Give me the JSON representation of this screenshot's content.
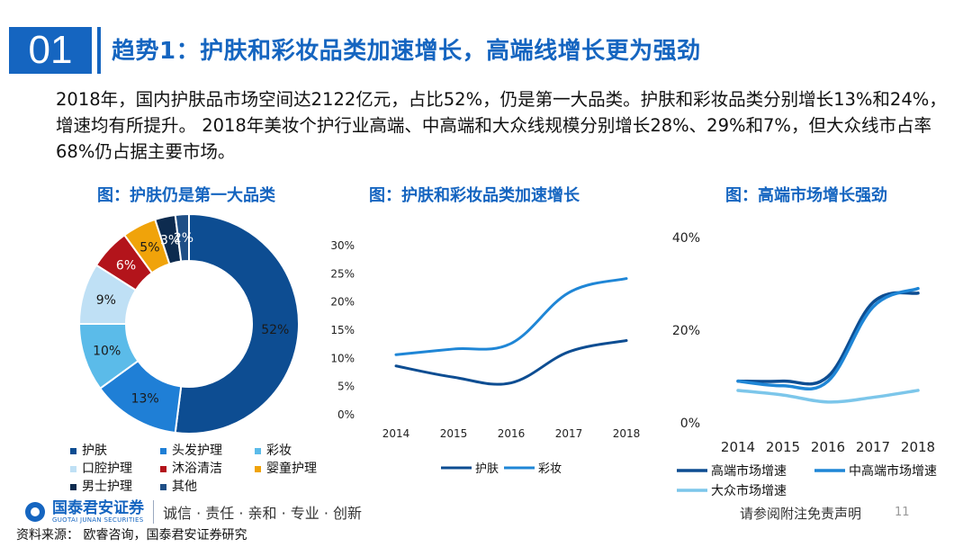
{
  "header": {
    "number": "01",
    "title": "趋势1：护肤和彩妆品类加速增长，高端线增长更为强劲"
  },
  "intro": "2018年，国内护肤品市场空间达2122亿元，占比52%，仍是第一大品类。护肤和彩妆品类分别增长13%和24%，增速均有所提升。 2018年美妆个护行业高端、中高端和大众线规模分别增长28%、29%和7%，但大众线市占率68%仍占据主要市场。",
  "chart_titles": {
    "left": "图：护肤仍是第一大品类",
    "middle": "图：护肤和彩妆品类加速增长",
    "right": "图：高端市场增长强劲"
  },
  "chart_data": [
    {
      "type": "pie",
      "variant": "donut",
      "title": "图：护肤仍是第一大品类",
      "categories": [
        "护肤",
        "头发护理",
        "彩妆",
        "口腔护理",
        "沐浴清洁",
        "婴童护理",
        "男士护理",
        "其他"
      ],
      "values": [
        52,
        13,
        10,
        9,
        6,
        5,
        3,
        2
      ],
      "labels": [
        "52%",
        "13%",
        "10%",
        "9%",
        "6%",
        "5%",
        "3%",
        "2%"
      ],
      "colors": [
        "#0d4d92",
        "#1f7fd6",
        "#5bbbe9",
        "#bfe0f5",
        "#b3141b",
        "#f0a30a",
        "#0d2b4f",
        "#1f4f86"
      ],
      "legend_position": "bottom"
    },
    {
      "type": "line",
      "title": "图：护肤和彩妆品类加速增长",
      "x": [
        "2014",
        "2015",
        "2016",
        "2017",
        "2018"
      ],
      "series": [
        {
          "name": "护肤",
          "values": [
            8.5,
            6.5,
            5.5,
            11.0,
            13.0
          ],
          "color": "#0d4d92"
        },
        {
          "name": "彩妆",
          "values": [
            10.5,
            11.5,
            12.5,
            21.5,
            24.0
          ],
          "color": "#1f86d6"
        }
      ],
      "ylim": [
        0,
        30
      ],
      "yticks": [
        "0%",
        "5%",
        "10%",
        "15%",
        "20%",
        "25%",
        "30%"
      ],
      "legend_position": "bottom"
    },
    {
      "type": "line",
      "title": "图：高端市场增长强劲",
      "x": [
        "2014",
        "2015",
        "2016",
        "2017",
        "2018"
      ],
      "series": [
        {
          "name": "高端市场增速",
          "values": [
            9,
            9,
            10,
            26,
            28
          ],
          "color": "#0d4d92"
        },
        {
          "name": "中高端市场增速",
          "values": [
            9,
            8,
            9,
            25,
            29
          ],
          "color": "#1f86d6"
        },
        {
          "name": "大众市场增速",
          "values": [
            7,
            6,
            4.5,
            5.5,
            7
          ],
          "color": "#7cc6ea"
        }
      ],
      "ylim": [
        0,
        40
      ],
      "yticks": [
        "0%",
        "20%",
        "40%"
      ],
      "legend_position": "bottom"
    }
  ],
  "footer": {
    "logo_cn": "国泰君安证券",
    "logo_en": "GUOTAI JUNAN SECURITIES",
    "slogan": "诚信 · 责任 · 亲和 · 专业 · 创新",
    "disclaimer": "请参阅附注免责声明",
    "page_number": "11",
    "source": "资料来源： 欧睿咨询，国泰君安证券研究"
  }
}
